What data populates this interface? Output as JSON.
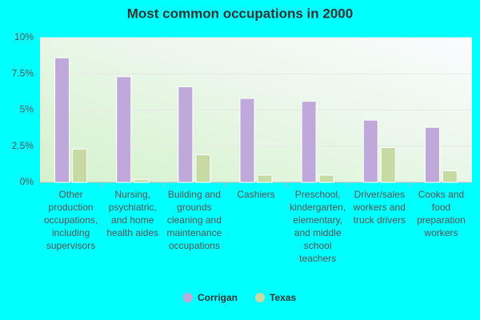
{
  "chart_data": {
    "type": "bar",
    "title": "Most common occupations in 2000",
    "categories": [
      "Other production occupations, including supervisors",
      "Nursing, psychiatric, and home health aides",
      "Building and grounds cleaning and maintenance occupations",
      "Cashiers",
      "Preschool, kindergarten, elementary, and middle school teachers",
      "Driver/sales workers and truck drivers",
      "Cooks and food preparation workers"
    ],
    "series": [
      {
        "name": "Corrigan",
        "color": "#bfa8da",
        "values": [
          8.6,
          7.3,
          6.6,
          5.8,
          5.6,
          4.3,
          3.8
        ]
      },
      {
        "name": "Texas",
        "color": "#c8daa4",
        "values": [
          2.3,
          0.2,
          1.9,
          0.5,
          0.5,
          2.4,
          0.8
        ]
      }
    ],
    "ylim": [
      0,
      10
    ],
    "yticks": [
      {
        "value": 0,
        "label": "0%"
      },
      {
        "value": 2.5,
        "label": "2.5%"
      },
      {
        "value": 5,
        "label": "5%"
      },
      {
        "value": 7.5,
        "label": "7.5%"
      },
      {
        "value": 10,
        "label": "10%"
      }
    ],
    "grid": true
  }
}
